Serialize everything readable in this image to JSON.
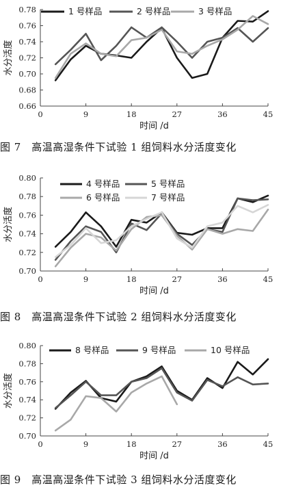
{
  "chart_data": [
    {
      "type": "line",
      "xlabel": "时间 /d",
      "ylabel": "水分活度",
      "xlim": [
        0,
        45
      ],
      "ylim": [
        0.66,
        0.78
      ],
      "xticks": [
        0,
        9,
        18,
        27,
        36,
        45
      ],
      "yticks": [
        0.66,
        0.68,
        0.7,
        0.72,
        0.74,
        0.76,
        0.78
      ],
      "ytick_labels": [
        "0.66",
        "0.68",
        "0.70",
        "0.72",
        "0.74",
        "0.76",
        "0.78"
      ],
      "legend": "top",
      "caption": "图 7　高温高湿条件下试验 1 组饲料水分活度变化",
      "series": [
        {
          "name": "1 号样品",
          "color": "#1a1a1a",
          "x": [
            3,
            6,
            9,
            12,
            15,
            18,
            21,
            24,
            27,
            30,
            33,
            36,
            39,
            42,
            45
          ],
          "y": [
            0.692,
            0.718,
            0.735,
            0.725,
            0.723,
            0.72,
            0.74,
            0.757,
            0.72,
            0.695,
            0.7,
            0.745,
            0.766,
            0.765,
            0.778
          ]
        },
        {
          "name": "2 号样品",
          "color": "#555555",
          "x": [
            3,
            6,
            9,
            12,
            15,
            18,
            21,
            24,
            27,
            30,
            33,
            36,
            39,
            42,
            45
          ],
          "y": [
            0.712,
            0.73,
            0.75,
            0.717,
            0.735,
            0.758,
            0.745,
            0.758,
            0.74,
            0.72,
            0.74,
            0.745,
            0.757,
            0.74,
            0.757
          ]
        },
        {
          "name": "3 号样品",
          "color": "#a8a8a8",
          "x": [
            3,
            6,
            9,
            12,
            15,
            18,
            21,
            24,
            27,
            30,
            33,
            36,
            39,
            42,
            45
          ],
          "y": [
            0.695,
            0.725,
            0.738,
            0.725,
            0.722,
            0.742,
            0.745,
            0.755,
            0.728,
            0.725,
            0.735,
            0.743,
            0.755,
            0.772,
            0.762
          ]
        }
      ]
    },
    {
      "type": "line",
      "xlabel": "时间 /d",
      "ylabel": "水分活度",
      "xlim": [
        0,
        45
      ],
      "ylim": [
        0.7,
        0.8
      ],
      "xticks": [
        0,
        9,
        18,
        27,
        36,
        45
      ],
      "yticks": [
        0.7,
        0.72,
        0.74,
        0.76,
        0.78,
        0.8
      ],
      "ytick_labels": [
        "0.70",
        "0.72",
        "0.74",
        "0.76",
        "0.78",
        "0.80"
      ],
      "legend": "top",
      "caption": "图 8　高温高湿条件下试验 2 组饲料水分活度变化",
      "series": [
        {
          "name": "4 号样品",
          "color": "#1a1a1a",
          "x": [
            3,
            6,
            9,
            12,
            15,
            18,
            21,
            24,
            27,
            30,
            33,
            36,
            39,
            42,
            45
          ],
          "y": [
            0.726,
            0.742,
            0.763,
            0.748,
            0.726,
            0.755,
            0.752,
            0.763,
            0.741,
            0.739,
            0.746,
            0.746,
            0.778,
            0.774,
            0.781
          ]
        },
        {
          "name": "5 号样品",
          "color": "#555555",
          "x": [
            3,
            6,
            9,
            12,
            15,
            18,
            21,
            24,
            27,
            30,
            33,
            36,
            39,
            42,
            45
          ],
          "y": [
            0.712,
            0.732,
            0.748,
            0.742,
            0.72,
            0.751,
            0.744,
            0.762,
            0.74,
            0.728,
            0.745,
            0.742,
            0.778,
            0.776,
            0.777
          ]
        },
        {
          "name": "6 号样品",
          "color": "#a8a8a8",
          "x": [
            3,
            6,
            9,
            12,
            15,
            18,
            21,
            24,
            27,
            30,
            33,
            36,
            39,
            42,
            45
          ],
          "y": [
            0.705,
            0.725,
            0.74,
            0.736,
            0.722,
            0.745,
            0.758,
            0.76,
            0.738,
            0.723,
            0.745,
            0.74,
            0.745,
            0.743,
            0.766
          ]
        },
        {
          "name": "7 号样品",
          "color": "#d6d6d6",
          "x": [
            3,
            6,
            9,
            12,
            15,
            18,
            21,
            24,
            27,
            30,
            33,
            36,
            39,
            42,
            45
          ],
          "y": [
            0.715,
            0.728,
            0.746,
            0.73,
            0.733,
            0.748,
            0.756,
            0.763,
            0.735,
            0.725,
            0.748,
            0.752,
            0.77,
            0.763,
            0.771
          ]
        }
      ]
    },
    {
      "type": "line",
      "xlabel": "时间 /d",
      "ylabel": "水分活度",
      "xlim": [
        0,
        45
      ],
      "ylim": [
        0.7,
        0.8
      ],
      "xticks": [
        0,
        9,
        18,
        27,
        36,
        45
      ],
      "yticks": [
        0.7,
        0.72,
        0.74,
        0.76,
        0.78,
        0.8
      ],
      "ytick_labels": [
        "0.70",
        "0.72",
        "0.74",
        "0.76",
        "0.78",
        "0.80"
      ],
      "legend": "top",
      "caption": "图 9　高温高湿条件下试验 3 组饲料水分活度变化",
      "series": [
        {
          "name": "8 号样品",
          "color": "#1a1a1a",
          "x": [
            3,
            6,
            9,
            12,
            15,
            18,
            21,
            24,
            27,
            30,
            33,
            36,
            39,
            42,
            45
          ],
          "y": [
            0.73,
            0.748,
            0.761,
            0.742,
            0.738,
            0.76,
            0.766,
            0.777,
            0.75,
            0.74,
            0.764,
            0.753,
            0.782,
            0.768,
            0.785
          ]
        },
        {
          "name": "9 号样品",
          "color": "#555555",
          "x": [
            3,
            6,
            9,
            12,
            15,
            18,
            21,
            24,
            27,
            30,
            33,
            36,
            39,
            42,
            45
          ],
          "y": [
            0.731,
            0.745,
            0.76,
            0.745,
            0.745,
            0.76,
            0.764,
            0.775,
            0.748,
            0.739,
            0.762,
            0.755,
            0.765,
            0.757,
            0.758
          ]
        },
        {
          "name": "10 号样品",
          "color": "#a8a8a8",
          "x": [
            3,
            6,
            9,
            12,
            15,
            18,
            21,
            24,
            27
          ],
          "y": [
            0.706,
            0.718,
            0.744,
            0.742,
            0.727,
            0.748,
            0.758,
            0.766,
            0.735
          ]
        }
      ]
    }
  ]
}
